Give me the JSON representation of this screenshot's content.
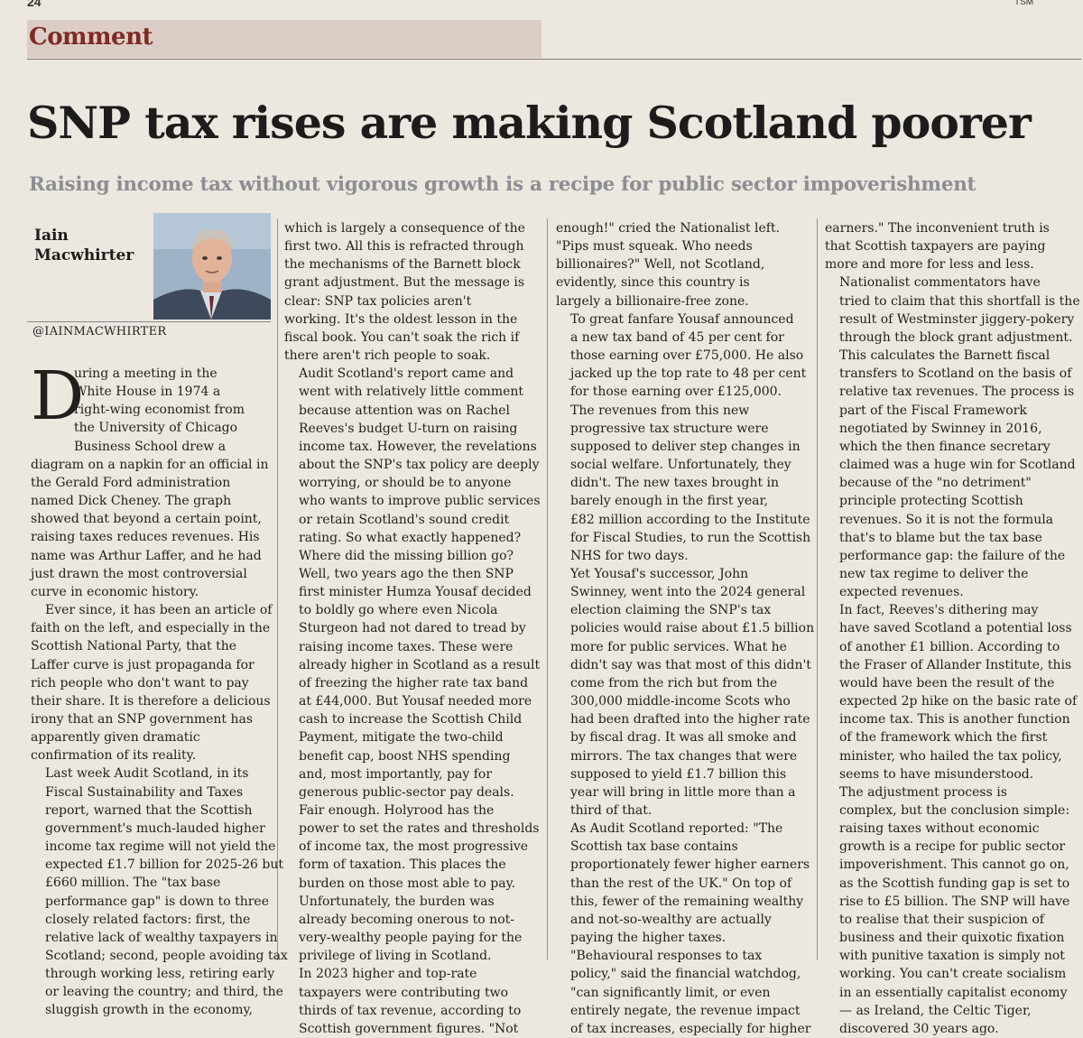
{
  "page_number": "24",
  "edition_mark": "TSM",
  "section": "Comment",
  "headline": "SNP tax rises are making Scotland poorer",
  "standfirst": "Raising income tax without vigorous growth is a recipe for public sector impoverishment",
  "author": {
    "name_line1": "Iain",
    "name_line2": "Macwhirter",
    "handle": "@IAINMACWHIRTER"
  },
  "columns": {
    "col1": {
      "dropcap": "D",
      "dropcap_lines": [
        "uring a meeting in the",
        "White House in 1974 a",
        "right-wing economist from",
        "the University of Chicago",
        "Business School drew a"
      ],
      "lines": [
        "diagram on a napkin for an official in",
        "the Gerald Ford administration",
        "named Dick Cheney. The graph",
        "showed that beyond a certain point,",
        "raising taxes reduces revenues. His",
        "name was Arthur Laffer, and he had",
        "just drawn the most controversial",
        "curve in economic history."
      ],
      "paragraphs": [
        [
          "Ever since, it has been an article of",
          "faith on the left, and especially in the",
          "Scottish National Party, that the",
          "Laffer curve is just propaganda for",
          "rich people who don't want to pay",
          "their share. It is therefore a delicious",
          "irony that an SNP government has",
          "apparently given dramatic",
          "confirmation of its reality."
        ],
        [
          "Last week Audit Scotland, in its",
          "Fiscal Sustainability and Taxes",
          "report, warned that the Scottish",
          "government's much-lauded higher",
          "income tax regime will not yield the",
          "expected £1.7 billion for 2025-26 but",
          "£660 million. The \"tax base",
          "performance gap\" is down to three",
          "closely related factors: first, the",
          "relative lack of wealthy taxpayers in",
          "Scotland; second, people avoiding tax",
          "through working less, retiring early",
          "or leaving the country; and third, the",
          "sluggish growth in the economy,"
        ]
      ]
    },
    "col2": [
      [
        "which is largely a consequence of the",
        "first two. All this is refracted through",
        "the mechanisms of the Barnett block",
        "grant adjustment. But the message is",
        "clear: SNP tax policies aren't",
        "working. It's the oldest lesson in the",
        "fiscal book. You can't soak the rich if",
        "there aren't rich people to soak."
      ],
      [
        "Audit Scotland's report came and",
        "went with relatively little comment",
        "because attention was on Rachel",
        "Reeves's budget U-turn on raising",
        "income tax. However, the revelations",
        "about the SNP's tax policy are deeply",
        "worrying, or should be to anyone",
        "who wants to improve public services",
        "or retain Scotland's sound credit",
        "rating. So what exactly happened?",
        "Where did the missing billion go?"
      ],
      [
        "Well, two years ago the then SNP",
        "first minister Humza Yousaf decided",
        "to boldly go where even Nicola",
        "Sturgeon had not dared to tread by",
        "raising income taxes. These were",
        "already higher in Scotland as a result",
        "of freezing the higher rate tax band",
        "at £44,000. But Yousaf needed more",
        "cash to increase the Scottish Child",
        "Payment, mitigate the two-child",
        "benefit cap, boost NHS spending",
        "and, most importantly, pay for",
        "generous public-sector pay deals."
      ],
      [
        "Fair enough. Holyrood has the",
        "power to set the rates and thresholds",
        "of income tax, the most progressive",
        "form of taxation. This places the",
        "burden on those most able to pay.",
        "Unfortunately, the burden was",
        "already becoming onerous to not-",
        "very-wealthy people paying for the",
        "privilege of living in Scotland."
      ],
      [
        "In 2023 higher and top-rate",
        "taxpayers were contributing two",
        "thirds of tax revenue, according to",
        "Scottish government figures. \"Not"
      ]
    ],
    "col3": [
      [
        "enough!\" cried the Nationalist left.",
        "\"Pips must squeak. Who needs",
        "billionaires?\" Well, not Scotland,",
        "evidently, since this country is",
        "largely a billionaire-free zone."
      ],
      [
        "To great fanfare Yousaf announced",
        "a new tax band of 45 per cent for",
        "those earning over £75,000. He also",
        "jacked up the top rate to 48 per cent",
        "for those earning over £125,000."
      ],
      [
        "The revenues from this new",
        "progressive tax structure were",
        "supposed to deliver step changes in",
        "social welfare. Unfortunately, they",
        "didn't. The new taxes brought in",
        "barely enough in the first year,",
        "£82 million according to the Institute",
        "for Fiscal Studies, to run the Scottish",
        "NHS for two days."
      ],
      [
        "Yet Yousaf's successor, John",
        "Swinney, went into the 2024 general",
        "election claiming the SNP's tax",
        "policies would raise about £1.5 billion",
        "more for public services. What he",
        "didn't say was that most of this didn't",
        "come from the rich but from the",
        "300,000 middle-income Scots who",
        "had been drafted into the higher rate",
        "by fiscal drag. It was all smoke and",
        "mirrors. The tax changes that were",
        "supposed to yield £1.7 billion this",
        "year will bring in little more than a",
        "third of that."
      ],
      [
        "As Audit Scotland reported: \"The",
        "Scottish tax base contains",
        "proportionately fewer higher earners",
        "than the rest of the UK.\" On top of",
        "this, fewer of the remaining wealthy",
        "and not-so-wealthy are actually",
        "paying the higher taxes."
      ],
      [
        "\"Behavioural responses to tax",
        "policy,\" said the financial watchdog,",
        "\"can significantly limit, or even",
        "entirely negate, the revenue impact",
        "of tax increases, especially for higher"
      ]
    ],
    "col4": [
      [
        "earners.\" The inconvenient truth is",
        "that Scottish taxpayers are paying",
        "more and more for less and less."
      ],
      [
        "Nationalist commentators have",
        "tried to claim that this shortfall is the",
        "result of Westminster jiggery-pokery",
        "through the block grant adjustment.",
        "This calculates the Barnett fiscal",
        "transfers to Scotland on the basis of",
        "relative tax revenues. The process is",
        "part of the Fiscal Framework",
        "negotiated by Swinney in 2016,",
        "which the then finance secretary",
        "claimed was a huge win for Scotland",
        "because of the \"no detriment\"",
        "principle protecting Scottish",
        "revenues. So it is not the formula",
        "that's to blame but the tax base",
        "performance gap: the failure of the",
        "new tax regime to deliver the",
        "expected revenues."
      ],
      [
        "In fact, Reeves's dithering may",
        "have saved Scotland a potential loss",
        "of another £1 billion. According to",
        "the Fraser of Allander Institute, this",
        "would have been the result of the",
        "expected 2p hike on the basic rate of",
        "income tax. This is another function",
        "of the framework which the first",
        "minister, who hailed the tax policy,",
        "seems to have misunderstood."
      ],
      [
        "The adjustment process is",
        "complex, but the conclusion simple:",
        "raising taxes without economic",
        "growth is a recipe for public sector",
        "impoverishment. This cannot go on,",
        "as the Scottish funding gap is set to",
        "rise to £5 billion. The SNP will have",
        "to realise that their suspicion of",
        "business and their quixotic fixation",
        "with punitive taxation is simply not",
        "working. You can't create socialism",
        "in an essentially capitalist economy",
        "— as Ireland, the Celtic Tiger,",
        "discovered 30 years ago."
      ]
    ]
  },
  "colors": {
    "section_red": "#7e2a22",
    "section_band": "#dbcdc6",
    "standfirst_grey": "#8d8d92",
    "paper": "#ece7df"
  }
}
